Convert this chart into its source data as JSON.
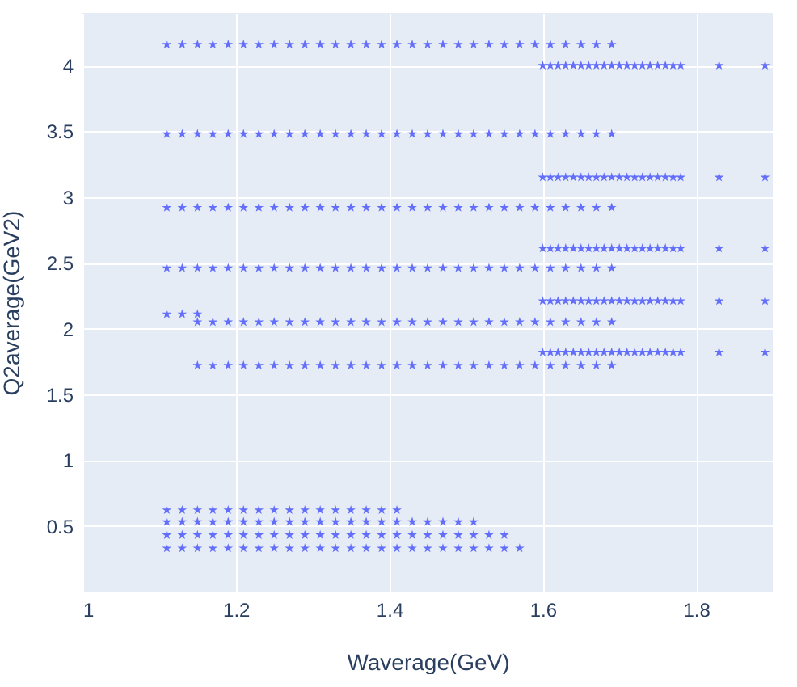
{
  "chart_data": {
    "type": "scatter",
    "xlabel": "Waverage(GeV)",
    "ylabel": "Q2average(GeV2)",
    "xlim": [
      1,
      1.9
    ],
    "ylim": [
      0,
      4.4
    ],
    "xticks": [
      1,
      1.2,
      1.4,
      1.6,
      1.8
    ],
    "yticks": [
      0.5,
      1,
      1.5,
      2,
      2.5,
      3,
      3.5,
      4
    ],
    "grid": true,
    "legend": false,
    "marker": "star",
    "series": [
      {
        "color": "#636efa",
        "x": [
          1.11,
          1.13,
          1.15,
          1.17,
          1.19,
          1.21,
          1.23,
          1.25,
          1.27,
          1.29,
          1.31,
          1.33,
          1.35,
          1.37,
          1.39,
          1.41,
          1.43,
          1.45,
          1.47,
          1.49,
          1.51,
          1.53,
          1.55,
          1.57,
          1.59,
          1.61,
          1.63,
          1.65,
          1.67,
          1.69
        ],
        "values": [
          4.16,
          4.16,
          4.16,
          4.16,
          4.16,
          4.16,
          4.16,
          4.16,
          4.16,
          4.16,
          4.16,
          4.16,
          4.16,
          4.16,
          4.16,
          4.16,
          4.16,
          4.16,
          4.16,
          4.16,
          4.16,
          4.16,
          4.16,
          4.16,
          4.16,
          4.16,
          4.16,
          4.16,
          4.16,
          4.16
        ]
      },
      {
        "color": "#636efa",
        "x": [
          1.11,
          1.13,
          1.15,
          1.17,
          1.19,
          1.21,
          1.23,
          1.25,
          1.27,
          1.29,
          1.31,
          1.33,
          1.35,
          1.37,
          1.39,
          1.41,
          1.43,
          1.45,
          1.47,
          1.49,
          1.51,
          1.53,
          1.55,
          1.57,
          1.59,
          1.61,
          1.63,
          1.65,
          1.67,
          1.69
        ],
        "values": [
          3.48,
          3.48,
          3.48,
          3.48,
          3.48,
          3.48,
          3.48,
          3.48,
          3.48,
          3.48,
          3.48,
          3.48,
          3.48,
          3.48,
          3.48,
          3.48,
          3.48,
          3.48,
          3.48,
          3.48,
          3.48,
          3.48,
          3.48,
          3.48,
          3.48,
          3.48,
          3.48,
          3.48,
          3.48,
          3.48
        ]
      },
      {
        "color": "#636efa",
        "x": [
          1.11,
          1.13,
          1.15,
          1.17,
          1.19,
          1.21,
          1.23,
          1.25,
          1.27,
          1.29,
          1.31,
          1.33,
          1.35,
          1.37,
          1.39,
          1.41,
          1.43,
          1.45,
          1.47,
          1.49,
          1.51,
          1.53,
          1.55,
          1.57,
          1.59,
          1.61,
          1.63,
          1.65,
          1.67,
          1.69
        ],
        "values": [
          2.92,
          2.92,
          2.92,
          2.92,
          2.92,
          2.92,
          2.92,
          2.92,
          2.92,
          2.92,
          2.92,
          2.92,
          2.92,
          2.92,
          2.92,
          2.92,
          2.92,
          2.92,
          2.92,
          2.92,
          2.92,
          2.92,
          2.92,
          2.92,
          2.92,
          2.92,
          2.92,
          2.92,
          2.92,
          2.92
        ]
      },
      {
        "color": "#636efa",
        "x": [
          1.11,
          1.13,
          1.15,
          1.17,
          1.19,
          1.21,
          1.23,
          1.25,
          1.27,
          1.29,
          1.31,
          1.33,
          1.35,
          1.37,
          1.39,
          1.41,
          1.43,
          1.45,
          1.47,
          1.49,
          1.51,
          1.53,
          1.55,
          1.57,
          1.59,
          1.61,
          1.63,
          1.65,
          1.67,
          1.69
        ],
        "values": [
          2.46,
          2.46,
          2.46,
          2.46,
          2.46,
          2.46,
          2.46,
          2.46,
          2.46,
          2.46,
          2.46,
          2.46,
          2.46,
          2.46,
          2.46,
          2.46,
          2.46,
          2.46,
          2.46,
          2.46,
          2.46,
          2.46,
          2.46,
          2.46,
          2.46,
          2.46,
          2.46,
          2.46,
          2.46,
          2.46
        ]
      },
      {
        "color": "#636efa",
        "x": [
          1.11,
          1.13,
          1.15
        ],
        "values": [
          2.11,
          2.11,
          2.11
        ]
      },
      {
        "color": "#636efa",
        "x": [
          1.15,
          1.17,
          1.19,
          1.21,
          1.23,
          1.25,
          1.27,
          1.29,
          1.31,
          1.33,
          1.35,
          1.37,
          1.39,
          1.41,
          1.43,
          1.45,
          1.47,
          1.49,
          1.51,
          1.53,
          1.55,
          1.57,
          1.59,
          1.61,
          1.63,
          1.65,
          1.67,
          1.69
        ],
        "values": [
          2.05,
          2.05,
          2.05,
          2.05,
          2.05,
          2.05,
          2.05,
          2.05,
          2.05,
          2.05,
          2.05,
          2.05,
          2.05,
          2.05,
          2.05,
          2.05,
          2.05,
          2.05,
          2.05,
          2.05,
          2.05,
          2.05,
          2.05,
          2.05,
          2.05,
          2.05,
          2.05,
          2.05
        ]
      },
      {
        "color": "#636efa",
        "x": [
          1.15,
          1.17,
          1.19,
          1.21,
          1.23,
          1.25,
          1.27,
          1.29,
          1.31,
          1.33,
          1.35,
          1.37,
          1.39,
          1.41,
          1.43,
          1.45,
          1.47,
          1.49,
          1.51,
          1.53,
          1.55,
          1.57,
          1.59,
          1.61,
          1.63,
          1.65,
          1.67,
          1.69
        ],
        "values": [
          1.72,
          1.72,
          1.72,
          1.72,
          1.72,
          1.72,
          1.72,
          1.72,
          1.72,
          1.72,
          1.72,
          1.72,
          1.72,
          1.72,
          1.72,
          1.72,
          1.72,
          1.72,
          1.72,
          1.72,
          1.72,
          1.72,
          1.72,
          1.72,
          1.72,
          1.72,
          1.72,
          1.72
        ]
      },
      {
        "color": "#636efa",
        "x": [
          1.6,
          1.61,
          1.62,
          1.63,
          1.64,
          1.65,
          1.66,
          1.67,
          1.68,
          1.69,
          1.7,
          1.71,
          1.72,
          1.73,
          1.74,
          1.75,
          1.76,
          1.77,
          1.78,
          1.83,
          1.89
        ],
        "values": [
          4.0,
          4.0,
          4.0,
          4.0,
          4.0,
          4.0,
          4.0,
          4.0,
          4.0,
          4.0,
          4.0,
          4.0,
          4.0,
          4.0,
          4.0,
          4.0,
          4.0,
          4.0,
          4.0,
          4.0,
          4.0
        ]
      },
      {
        "color": "#636efa",
        "x": [
          1.6,
          1.61,
          1.62,
          1.63,
          1.64,
          1.65,
          1.66,
          1.67,
          1.68,
          1.69,
          1.7,
          1.71,
          1.72,
          1.73,
          1.74,
          1.75,
          1.76,
          1.77,
          1.78,
          1.83,
          1.89
        ],
        "values": [
          3.15,
          3.15,
          3.15,
          3.15,
          3.15,
          3.15,
          3.15,
          3.15,
          3.15,
          3.15,
          3.15,
          3.15,
          3.15,
          3.15,
          3.15,
          3.15,
          3.15,
          3.15,
          3.15,
          3.15,
          3.15
        ]
      },
      {
        "color": "#636efa",
        "x": [
          1.6,
          1.61,
          1.62,
          1.63,
          1.64,
          1.65,
          1.66,
          1.67,
          1.68,
          1.69,
          1.7,
          1.71,
          1.72,
          1.73,
          1.74,
          1.75,
          1.76,
          1.77,
          1.78,
          1.83,
          1.89
        ],
        "values": [
          2.61,
          2.61,
          2.61,
          2.61,
          2.61,
          2.61,
          2.61,
          2.61,
          2.61,
          2.61,
          2.61,
          2.61,
          2.61,
          2.61,
          2.61,
          2.61,
          2.61,
          2.61,
          2.61,
          2.61,
          2.61
        ]
      },
      {
        "color": "#636efa",
        "x": [
          1.6,
          1.61,
          1.62,
          1.63,
          1.64,
          1.65,
          1.66,
          1.67,
          1.68,
          1.69,
          1.7,
          1.71,
          1.72,
          1.73,
          1.74,
          1.75,
          1.76,
          1.77,
          1.78,
          1.83,
          1.89
        ],
        "values": [
          2.21,
          2.21,
          2.21,
          2.21,
          2.21,
          2.21,
          2.21,
          2.21,
          2.21,
          2.21,
          2.21,
          2.21,
          2.21,
          2.21,
          2.21,
          2.21,
          2.21,
          2.21,
          2.21,
          2.21,
          2.21
        ]
      },
      {
        "color": "#636efa",
        "x": [
          1.6,
          1.61,
          1.62,
          1.63,
          1.64,
          1.65,
          1.66,
          1.67,
          1.68,
          1.69,
          1.7,
          1.71,
          1.72,
          1.73,
          1.74,
          1.75,
          1.76,
          1.77,
          1.78,
          1.83,
          1.89
        ],
        "values": [
          1.82,
          1.82,
          1.82,
          1.82,
          1.82,
          1.82,
          1.82,
          1.82,
          1.82,
          1.82,
          1.82,
          1.82,
          1.82,
          1.82,
          1.82,
          1.82,
          1.82,
          1.82,
          1.82,
          1.82,
          1.82
        ]
      },
      {
        "color": "#636efa",
        "x": [
          1.11,
          1.13,
          1.15,
          1.17,
          1.19,
          1.21,
          1.23,
          1.25,
          1.27,
          1.29,
          1.31,
          1.33,
          1.35,
          1.37,
          1.39,
          1.41
        ],
        "values": [
          0.62,
          0.62,
          0.62,
          0.62,
          0.62,
          0.62,
          0.62,
          0.62,
          0.62,
          0.62,
          0.62,
          0.62,
          0.62,
          0.62,
          0.62,
          0.62
        ]
      },
      {
        "color": "#636efa",
        "x": [
          1.11,
          1.13,
          1.15,
          1.17,
          1.19,
          1.21,
          1.23,
          1.25,
          1.27,
          1.29,
          1.31,
          1.33,
          1.35,
          1.37,
          1.39,
          1.41,
          1.43,
          1.45,
          1.47,
          1.49,
          1.51
        ],
        "values": [
          0.53,
          0.53,
          0.53,
          0.53,
          0.53,
          0.53,
          0.53,
          0.53,
          0.53,
          0.53,
          0.53,
          0.53,
          0.53,
          0.53,
          0.53,
          0.53,
          0.53,
          0.53,
          0.53,
          0.53,
          0.53
        ]
      },
      {
        "color": "#636efa",
        "x": [
          1.11,
          1.13,
          1.15,
          1.17,
          1.19,
          1.21,
          1.23,
          1.25,
          1.27,
          1.29,
          1.31,
          1.33,
          1.35,
          1.37,
          1.39,
          1.41,
          1.43,
          1.45,
          1.47,
          1.49,
          1.51,
          1.53,
          1.55
        ],
        "values": [
          0.43,
          0.43,
          0.43,
          0.43,
          0.43,
          0.43,
          0.43,
          0.43,
          0.43,
          0.43,
          0.43,
          0.43,
          0.43,
          0.43,
          0.43,
          0.43,
          0.43,
          0.43,
          0.43,
          0.43,
          0.43,
          0.43,
          0.43
        ]
      },
      {
        "color": "#636efa",
        "x": [
          1.11,
          1.13,
          1.15,
          1.17,
          1.19,
          1.21,
          1.23,
          1.25,
          1.27,
          1.29,
          1.31,
          1.33,
          1.35,
          1.37,
          1.39,
          1.41,
          1.43,
          1.45,
          1.47,
          1.49,
          1.51,
          1.53,
          1.55,
          1.57
        ],
        "values": [
          0.33,
          0.33,
          0.33,
          0.33,
          0.33,
          0.33,
          0.33,
          0.33,
          0.33,
          0.33,
          0.33,
          0.33,
          0.33,
          0.33,
          0.33,
          0.33,
          0.33,
          0.33,
          0.33,
          0.33,
          0.33,
          0.33,
          0.33,
          0.33
        ]
      }
    ]
  }
}
